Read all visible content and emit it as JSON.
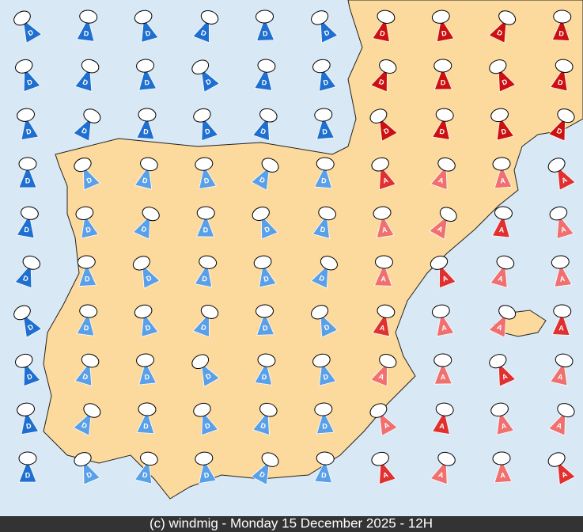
{
  "footer": "(c) windmig - Monday 15 December 2025 - 12H",
  "symbols": [
    "D",
    "D",
    "D",
    "D",
    "D",
    "D",
    "D",
    "D",
    "D",
    "D",
    "D",
    "D",
    "D",
    "D",
    "D",
    "D",
    "D",
    "D",
    "D",
    "D",
    "D",
    "D",
    "D",
    "D",
    "D",
    "D",
    "D",
    "D",
    "D",
    "D",
    "D",
    "D",
    "D",
    "D",
    "D",
    "D",
    "A",
    "A",
    "A",
    "A",
    "D",
    "D",
    "D",
    "D",
    "D",
    "D",
    "A",
    "A",
    "A",
    "A",
    "D",
    "D",
    "D",
    "D",
    "D",
    "D",
    "A",
    "A",
    "A",
    "A",
    "D",
    "D",
    "D",
    "D",
    "D",
    "D",
    "A",
    "A",
    "A",
    "A",
    "D",
    "D",
    "D",
    "D",
    "D",
    "D",
    "A",
    "A",
    "A",
    "A",
    "D",
    "D",
    "D",
    "D",
    "D",
    "D",
    "A",
    "A",
    "A",
    "A",
    "D",
    "D",
    "D",
    "D",
    "D",
    "D",
    "A",
    "A",
    "A",
    "A"
  ]
}
